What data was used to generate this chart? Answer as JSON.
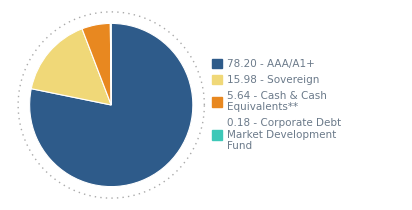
{
  "slices": [
    78.2,
    15.98,
    5.64,
    0.18
  ],
  "colors": [
    "#2e5b8a",
    "#f0d878",
    "#e88820",
    "#3dc8b8"
  ],
  "labels": [
    "78.20 - AAA/A1+",
    "15.98 - Sovereign",
    "5.64 - Cash & Cash\nEquivalents**",
    "0.18 - Corporate Debt\nMarket Development\nFund"
  ],
  "startangle": 90,
  "background_color": "#ffffff",
  "legend_fontsize": 7.5,
  "text_color": "#6b7a8a",
  "dot_color": "#aaaaaa"
}
